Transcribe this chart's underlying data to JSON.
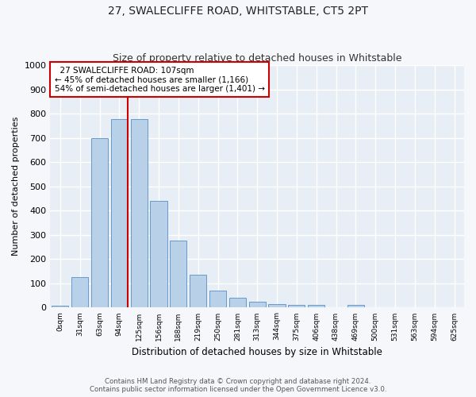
{
  "title": "27, SWALECLIFFE ROAD, WHITSTABLE, CT5 2PT",
  "subtitle": "Size of property relative to detached houses in Whitstable",
  "xlabel": "Distribution of detached houses by size in Whitstable",
  "ylabel": "Number of detached properties",
  "bar_color": "#b8d0e8",
  "bar_edge_color": "#6699cc",
  "background_color": "#e8eef5",
  "fig_background_color": "#f5f7fa",
  "grid_color": "#ffffff",
  "categories": [
    "0sqm",
    "31sqm",
    "63sqm",
    "94sqm",
    "125sqm",
    "156sqm",
    "188sqm",
    "219sqm",
    "250sqm",
    "281sqm",
    "313sqm",
    "344sqm",
    "375sqm",
    "406sqm",
    "438sqm",
    "469sqm",
    "500sqm",
    "531sqm",
    "563sqm",
    "594sqm",
    "625sqm"
  ],
  "values": [
    8,
    127,
    700,
    778,
    778,
    440,
    275,
    135,
    70,
    40,
    25,
    13,
    12,
    10,
    0,
    10,
    0,
    0,
    0,
    0,
    0
  ],
  "ylim": [
    0,
    1000
  ],
  "yticks": [
    0,
    100,
    200,
    300,
    400,
    500,
    600,
    700,
    800,
    900,
    1000
  ],
  "annotation_text": "  27 SWALECLIFFE ROAD: 107sqm\n← 45% of detached houses are smaller (1,166)\n54% of semi-detached houses are larger (1,401) →",
  "annotation_box_color": "#ffffff",
  "annotation_border_color": "#cc0000",
  "footer_line1": "Contains HM Land Registry data © Crown copyright and database right 2024.",
  "footer_line2": "Contains public sector information licensed under the Open Government Licence v3.0.",
  "title_fontsize": 10,
  "subtitle_fontsize": 9
}
